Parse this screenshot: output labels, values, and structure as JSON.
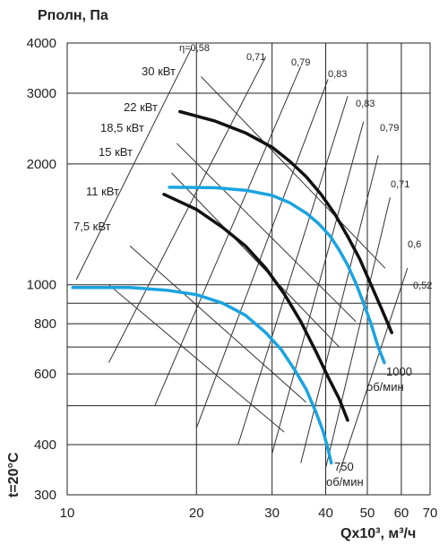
{
  "chart_data": {
    "type": "line",
    "title_y": "Pполн, Па",
    "xlabel": "Qx10³, м³/ч",
    "side_label": "t=20°C",
    "x_scale": "log",
    "y_scale": "log",
    "xlim": [
      10,
      70
    ],
    "ylim": [
      300,
      4000
    ],
    "x_ticks": [
      10,
      20,
      30,
      40,
      50,
      60,
      70
    ],
    "y_ticks": [
      300,
      400,
      600,
      800,
      1000,
      2000,
      3000,
      4000
    ],
    "grid": true,
    "speed_labels": [
      {
        "value": "1000",
        "unit": "об/мин"
      },
      {
        "value": "750",
        "unit": "об/мин"
      }
    ],
    "efficiency_labels": [
      "η=0,58",
      "0,71",
      "0,79",
      "0,83",
      "0,83",
      "0,79",
      "0,71",
      "0,6",
      "0,52"
    ],
    "power_labels": [
      "30 кВт",
      "22 кВт",
      "18,5 кВт",
      "15 кВт",
      "11 кВт",
      "7,5 кВт"
    ],
    "series": [
      {
        "label": "1000 об/мин",
        "color": "#1aa3e0",
        "x": [
          17.3,
          22,
          26,
          30,
          33,
          36,
          38.5,
          41,
          43,
          45,
          47,
          49,
          51,
          53,
          54.8
        ],
        "y": [
          1750,
          1745,
          1720,
          1670,
          1600,
          1510,
          1420,
          1320,
          1220,
          1120,
          1010,
          900,
          800,
          700,
          640
        ]
      },
      {
        "label": "750 об/мин",
        "color": "#1aa3e0",
        "x": [
          10.3,
          14,
          17,
          20,
          23,
          26,
          29,
          31.5,
          34,
          36,
          38,
          39.5,
          40.5,
          41.2
        ],
        "y": [
          985,
          985,
          970,
          945,
          900,
          840,
          760,
          690,
          610,
          550,
          480,
          430,
          390,
          360
        ]
      },
      {
        "label": "22 кВт",
        "color": "#111111",
        "x": [
          18.3,
          22,
          26,
          30,
          33,
          36,
          39,
          42,
          45,
          48,
          51,
          54,
          57
        ],
        "y": [
          2700,
          2560,
          2390,
          2200,
          2030,
          1860,
          1680,
          1500,
          1320,
          1160,
          1000,
          870,
          760
        ]
      },
      {
        "label": "11 кВт",
        "color": "#111111",
        "x": [
          16.8,
          20,
          23,
          26,
          29,
          32,
          35,
          38,
          40.5,
          43,
          45
        ],
        "y": [
          1680,
          1540,
          1390,
          1250,
          1100,
          950,
          810,
          680,
          590,
          520,
          460
        ]
      }
    ]
  },
  "colors": {
    "blue": "#1aa3e0",
    "black": "#111111",
    "grid": "#222222",
    "thin": "#333333"
  }
}
